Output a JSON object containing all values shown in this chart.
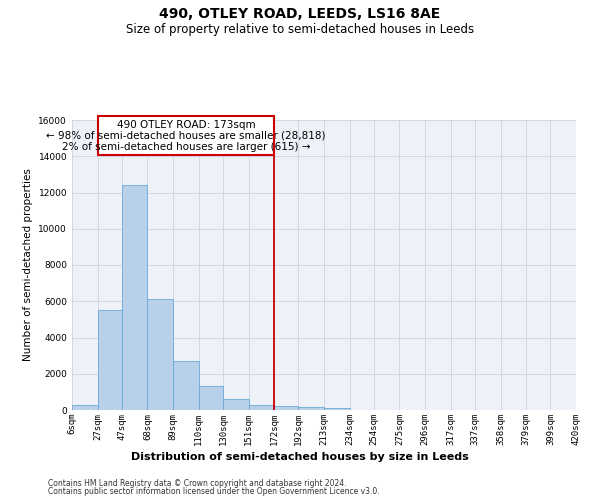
{
  "title": "490, OTLEY ROAD, LEEDS, LS16 8AE",
  "subtitle": "Size of property relative to semi-detached houses in Leeds",
  "xlabel": "Distribution of semi-detached houses by size in Leeds",
  "ylabel": "Number of semi-detached properties",
  "bin_labels": [
    "6sqm",
    "27sqm",
    "47sqm",
    "68sqm",
    "89sqm",
    "110sqm",
    "130sqm",
    "151sqm",
    "172sqm",
    "192sqm",
    "213sqm",
    "234sqm",
    "254sqm",
    "275sqm",
    "296sqm",
    "317sqm",
    "337sqm",
    "358sqm",
    "379sqm",
    "399sqm",
    "420sqm"
  ],
  "bin_edges": [
    6,
    27,
    47,
    68,
    89,
    110,
    130,
    151,
    172,
    192,
    213,
    234,
    254,
    275,
    296,
    317,
    337,
    358,
    379,
    399,
    420
  ],
  "bar_values": [
    300,
    5500,
    12400,
    6150,
    2700,
    1350,
    600,
    250,
    200,
    150,
    100,
    0,
    0,
    0,
    0,
    0,
    0,
    0,
    0,
    0
  ],
  "bar_color": "#b8d0ea",
  "bar_edgecolor": "#6aaad4",
  "property_line_x": 172,
  "property_line_color": "#cc0000",
  "annotation_line1": "490 OTLEY ROAD: 173sqm",
  "annotation_line2": "← 98% of semi-detached houses are smaller (28,818)",
  "annotation_line3": "2% of semi-detached houses are larger (615) →",
  "annotation_box_color": "#cc0000",
  "ylim": [
    0,
    16000
  ],
  "yticks": [
    0,
    2000,
    4000,
    6000,
    8000,
    10000,
    12000,
    14000,
    16000
  ],
  "grid_color": "#d0d8e8",
  "bg_color": "#eef2f8",
  "footer_line1": "Contains HM Land Registry data © Crown copyright and database right 2024.",
  "footer_line2": "Contains public sector information licensed under the Open Government Licence v3.0.",
  "title_fontsize": 10,
  "subtitle_fontsize": 8.5,
  "xlabel_fontsize": 8,
  "ylabel_fontsize": 7.5,
  "tick_fontsize": 6.5,
  "annotation_fontsize": 7.5,
  "footer_fontsize": 5.5
}
